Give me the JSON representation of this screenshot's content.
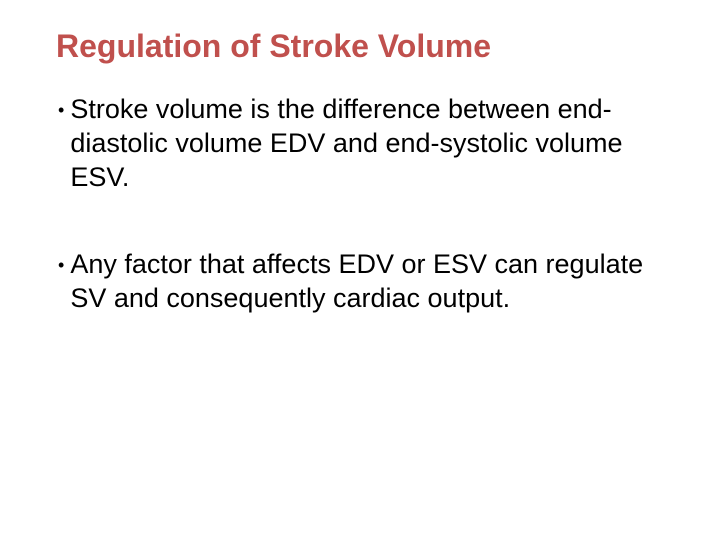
{
  "slide": {
    "title": "Regulation of Stroke Volume",
    "bullets": [
      "Stroke volume is the difference between end-diastolic volume EDV and end-systolic volume ESV.",
      " Any factor that affects EDV or ESV can regulate SV and consequently cardiac output."
    ]
  },
  "colors": {
    "title": "#c0504d",
    "text": "#000000",
    "background": "#ffffff"
  },
  "typography": {
    "title_fontsize": 32,
    "title_weight": "bold",
    "body_fontsize": 27,
    "font_family": "Arial"
  }
}
